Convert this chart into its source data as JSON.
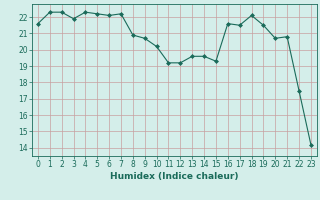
{
  "x": [
    0,
    1,
    2,
    3,
    4,
    5,
    6,
    7,
    8,
    9,
    10,
    11,
    12,
    13,
    14,
    15,
    16,
    17,
    18,
    19,
    20,
    21,
    22,
    23
  ],
  "y": [
    21.6,
    22.3,
    22.3,
    21.9,
    22.3,
    22.2,
    22.1,
    22.2,
    20.9,
    20.7,
    20.2,
    19.2,
    19.2,
    19.6,
    19.6,
    19.3,
    21.6,
    21.5,
    22.1,
    21.5,
    20.7,
    20.8,
    17.5,
    14.2
  ],
  "line_color": "#1a6b5a",
  "marker": "D",
  "marker_size": 2.0,
  "bg_color": "#d4eeea",
  "grid_color": "#c0dcd8",
  "tick_color": "#1a6b5a",
  "xlabel": "Humidex (Indice chaleur)",
  "xlim": [
    -0.5,
    23.5
  ],
  "ylim": [
    13.5,
    22.8
  ],
  "yticks": [
    14,
    15,
    16,
    17,
    18,
    19,
    20,
    21,
    22
  ],
  "xticks": [
    0,
    1,
    2,
    3,
    4,
    5,
    6,
    7,
    8,
    9,
    10,
    11,
    12,
    13,
    14,
    15,
    16,
    17,
    18,
    19,
    20,
    21,
    22,
    23
  ],
  "xlabel_fontsize": 6.5,
  "tick_fontsize": 5.5
}
